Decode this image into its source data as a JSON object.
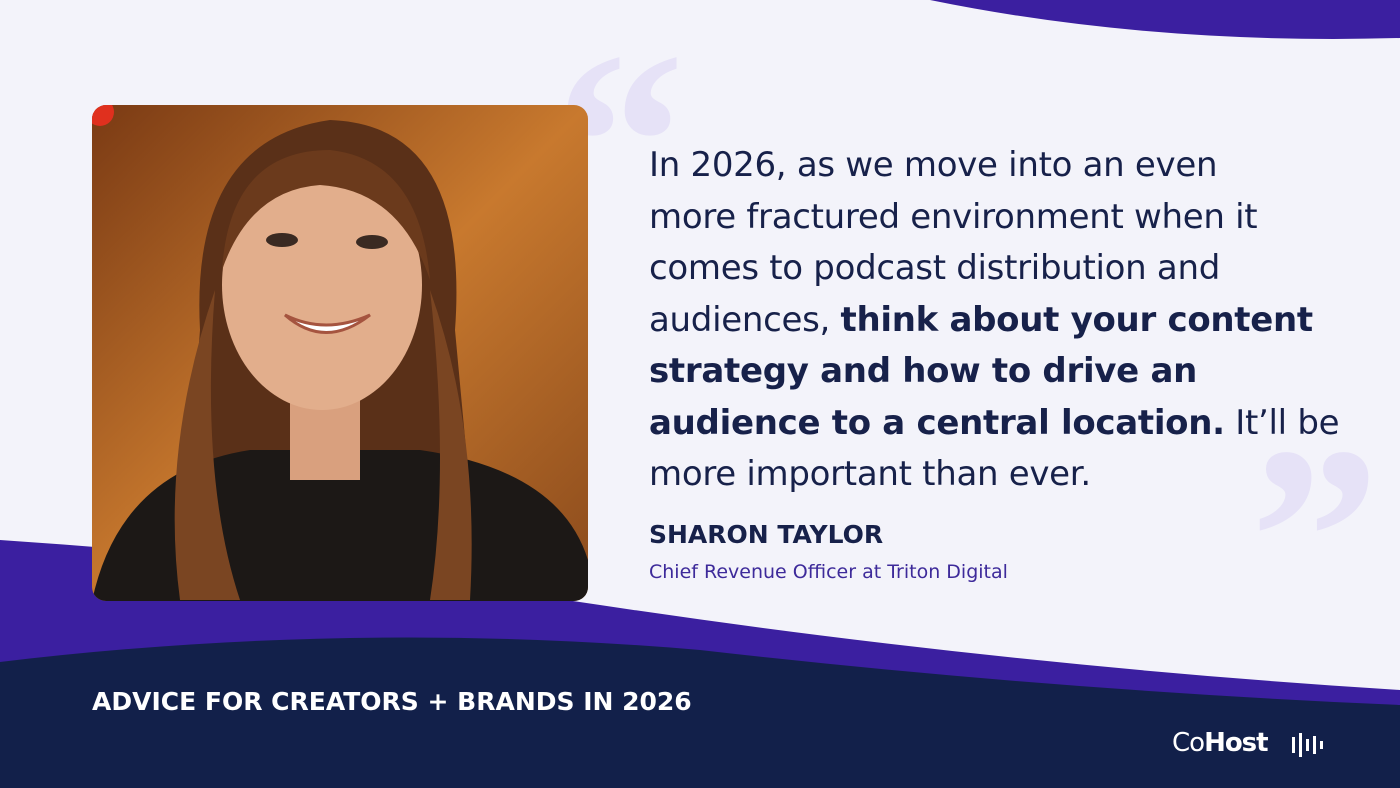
{
  "quote": {
    "lines": [
      [
        {
          "text": "In 2026, as we move into an even",
          "bold": false
        }
      ],
      [
        {
          "text": "more fractured environment when it",
          "bold": false
        }
      ],
      [
        {
          "text": "comes to podcast distribution and",
          "bold": false
        }
      ],
      [
        {
          "text": "audiences, ",
          "bold": false
        },
        {
          "text": "think about your content",
          "bold": true
        }
      ],
      [
        {
          "text": "strategy and how to drive an",
          "bold": true
        }
      ],
      [
        {
          "text": "audience to a central location.",
          "bold": true
        },
        {
          "text": " It’ll be",
          "bold": false
        }
      ],
      [
        {
          "text": "more important than ever.",
          "bold": false
        }
      ]
    ]
  },
  "speaker": {
    "name": "SHARON TAYLOR",
    "role": "Chief Revenue Officer at Triton Digital"
  },
  "footer": {
    "title": "ADVICE FOR CREATORS + BRANDS IN 2026",
    "logo": {
      "light": "Co",
      "bold": "Host"
    }
  }
}
